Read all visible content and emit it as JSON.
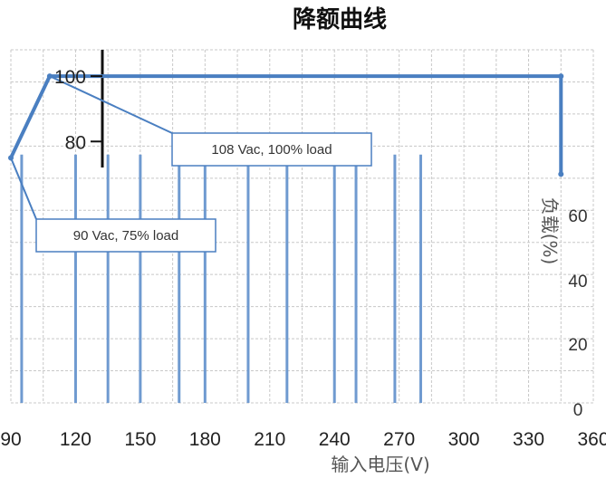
{
  "chart_data": {
    "type": "line",
    "title": "降额曲线",
    "xlabel": "输入电压(V)",
    "ylabel": "",
    "y2label": "负载(%)",
    "x_ticks": [
      "90",
      "120",
      "150",
      "180",
      "210",
      "240",
      "270",
      "300",
      "330",
      "360"
    ],
    "y_ticks": [
      "80",
      "100"
    ],
    "y2_ticks": [
      "0",
      "20",
      "40",
      "60"
    ],
    "xlim": [
      90,
      360
    ],
    "ylim": [
      0,
      110
    ],
    "grid": true,
    "series": [
      {
        "color": "#4a7fc1",
        "x": [
          90,
          108,
          345,
          345
        ],
        "y": [
          75,
          100,
          100,
          70
        ]
      }
    ],
    "annotations": [
      {
        "text": "108 Vac, 100% load",
        "x": 108,
        "y": 100
      },
      {
        "text": "90 Vac, 75% load",
        "x": 90,
        "y": 75
      }
    ]
  }
}
